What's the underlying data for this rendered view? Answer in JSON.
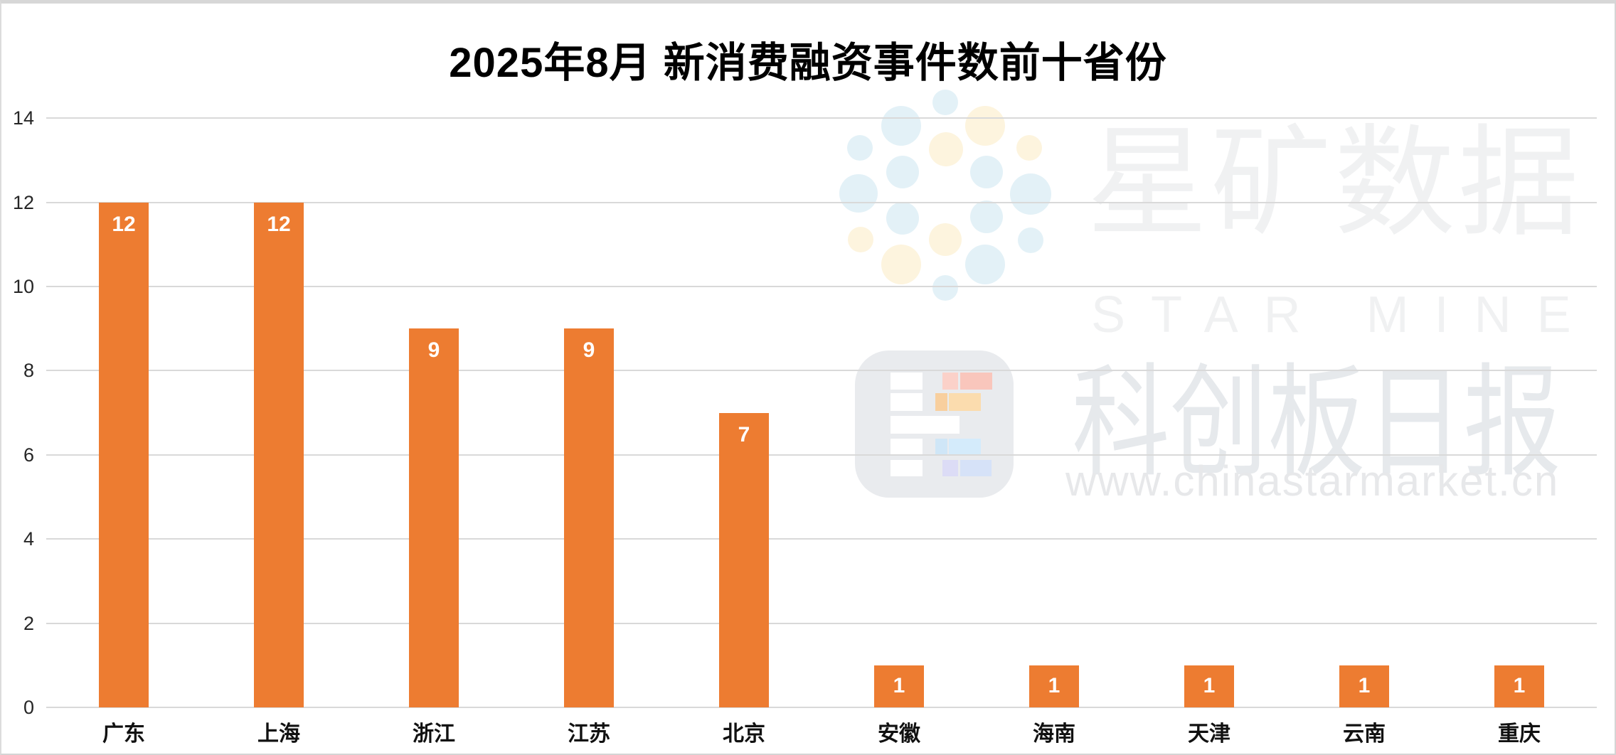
{
  "title": "2025年8月 新消费融资事件数前十省份",
  "chart_data": {
    "type": "bar",
    "categories": [
      "广东",
      "上海",
      "浙江",
      "江苏",
      "北京",
      "安徽",
      "海南",
      "天津",
      "云南",
      "重庆"
    ],
    "values": [
      12,
      12,
      9,
      9,
      7,
      1,
      1,
      1,
      1,
      1
    ],
    "title": "2025年8月 新消费融资事件数前十省份",
    "xlabel": "",
    "ylabel": "",
    "ylim": [
      0,
      14
    ],
    "yticks": [
      0,
      2,
      4,
      6,
      8,
      10,
      12,
      14
    ],
    "grid": true,
    "legend": "none",
    "bar_color": "#ED7C31",
    "value_label_color": "#FFFFFF",
    "gridline_color": "#D9D9D9"
  },
  "watermarks": {
    "star_mine": {
      "cn": "星矿数据",
      "en": "STAR MINE",
      "text_color": "#F0F1F2",
      "dot_blue": "#E3F1F7",
      "dot_yellow": "#FDF4DE"
    },
    "star_daily": {
      "cn": "科创板日报",
      "url": "www.chinastarmarket.cn",
      "text_color": "#E6E9EC"
    }
  }
}
